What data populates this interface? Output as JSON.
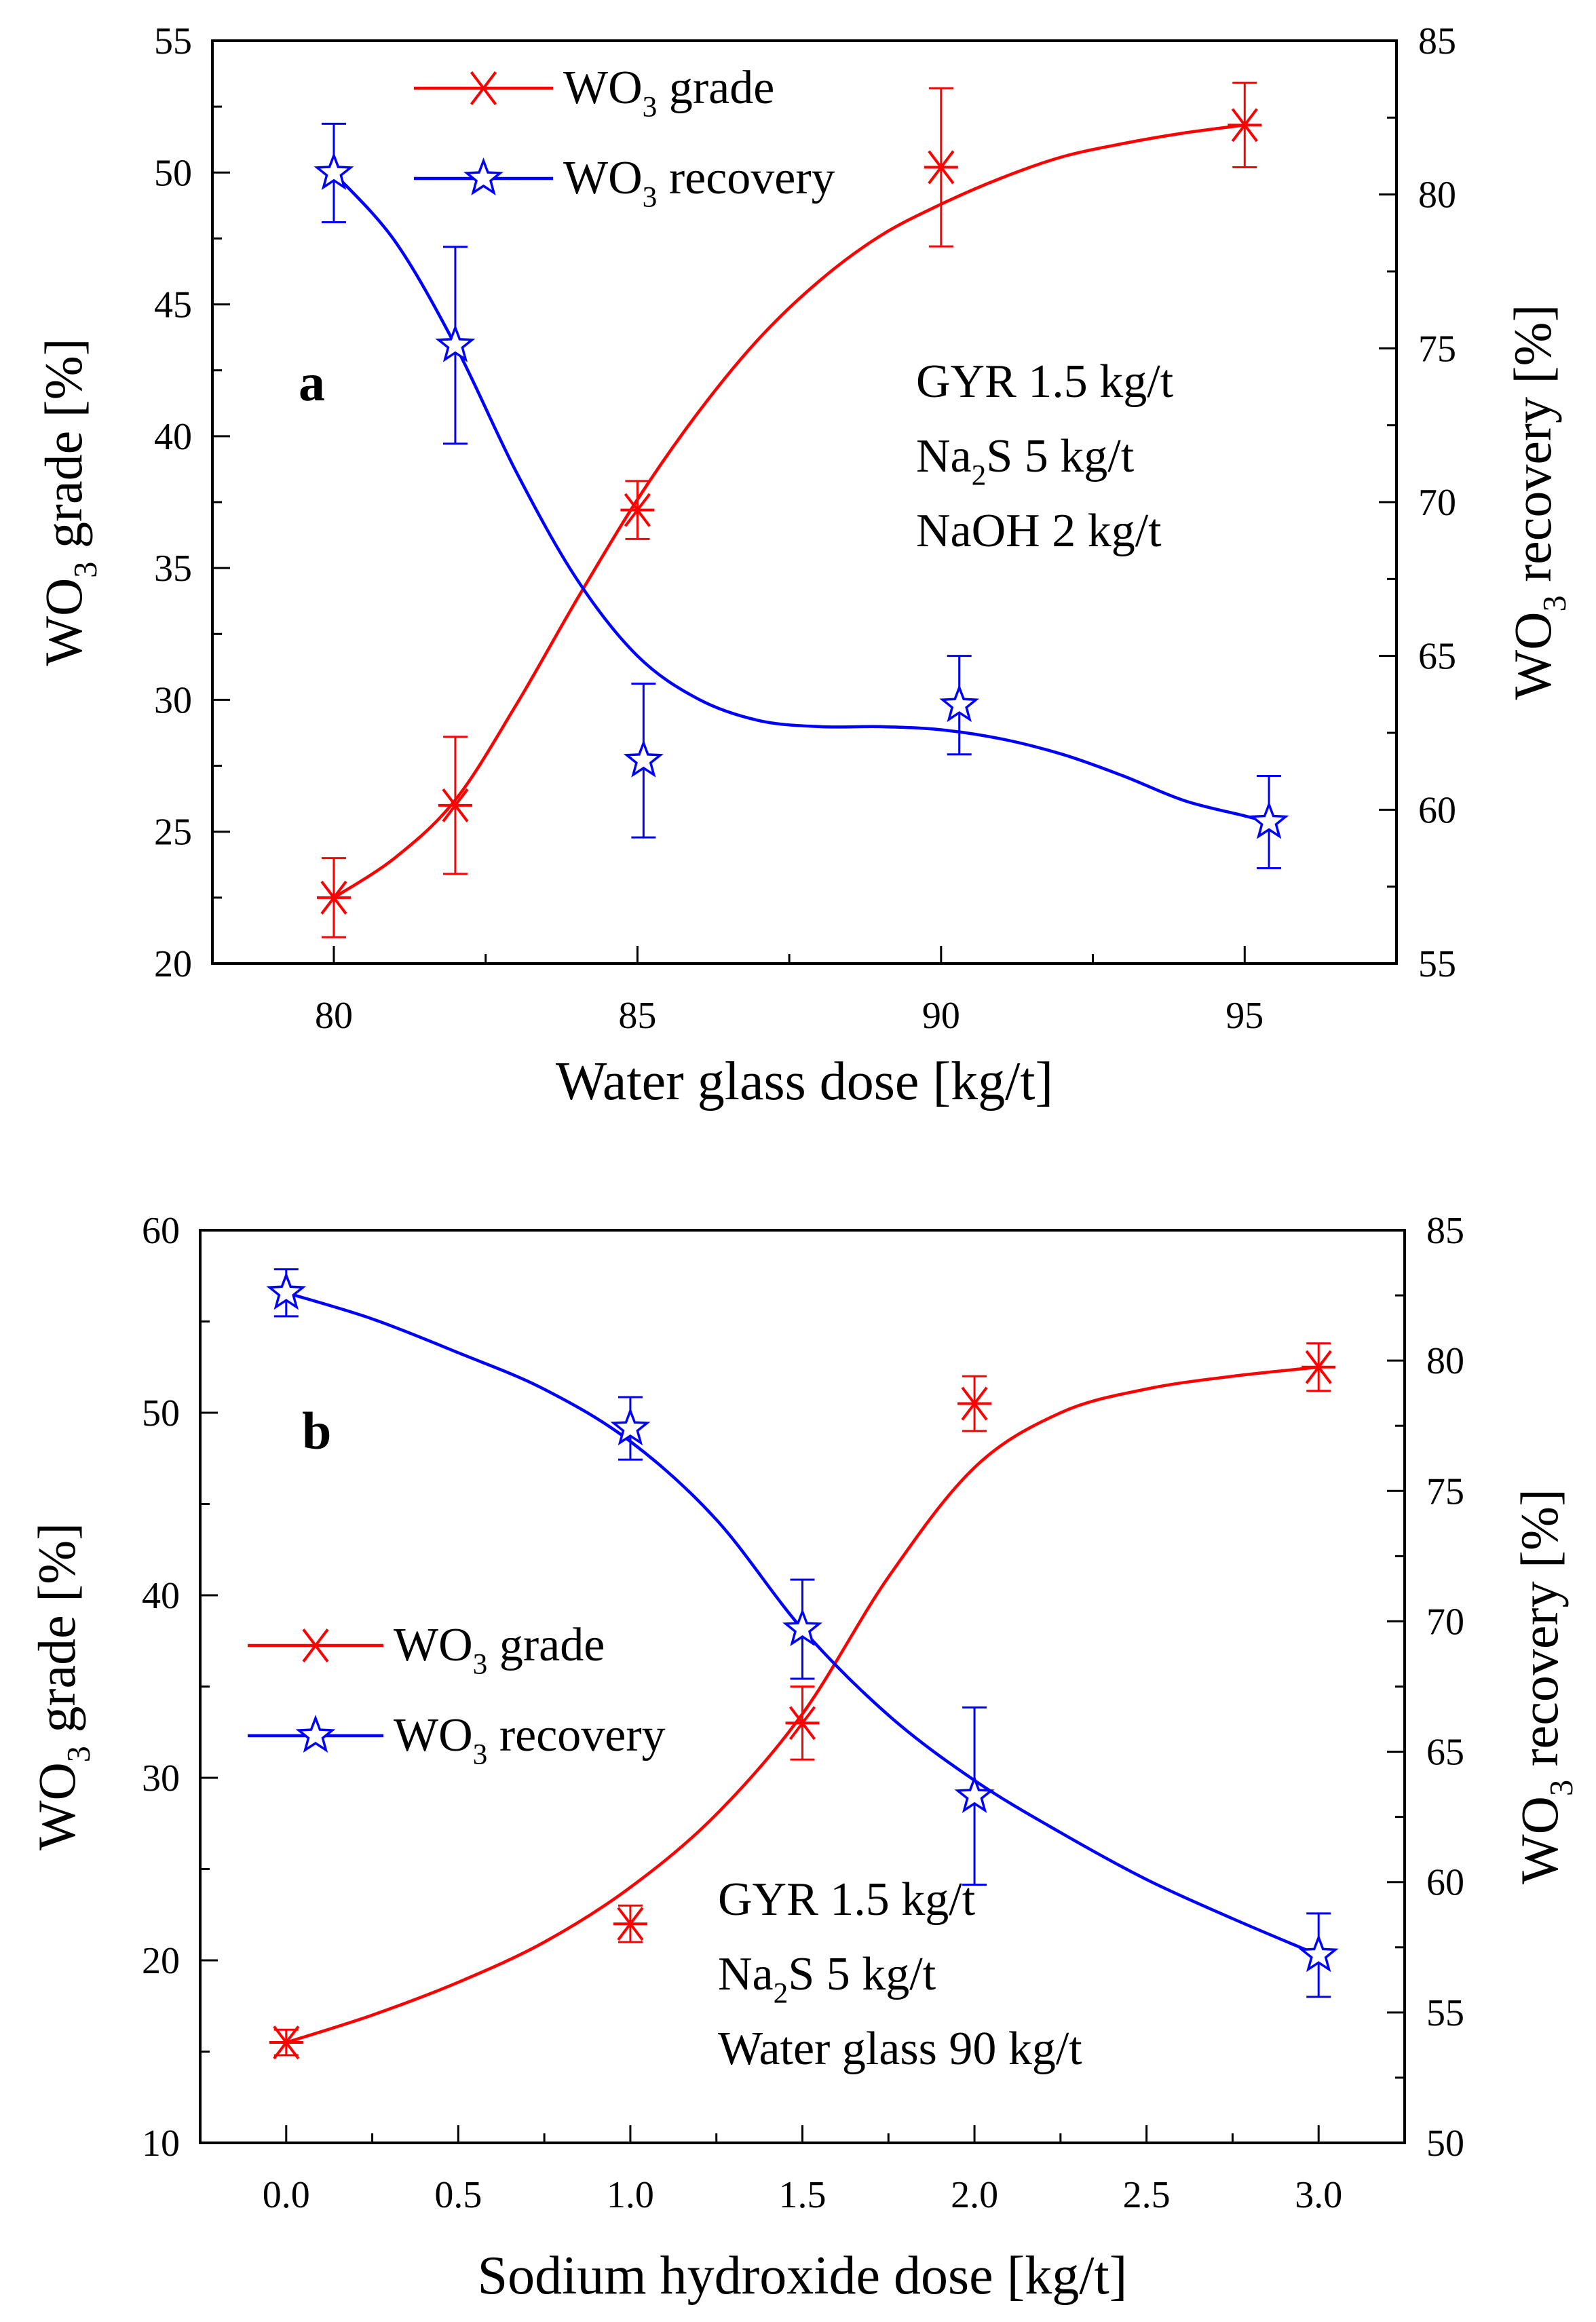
{
  "chart_data": [
    {
      "type": "line",
      "panel_label": "a",
      "xlabel": "Water glass dose [kg/t]",
      "ylabel": {
        "pre": "WO",
        "sub": "3",
        "post": " grade [%]"
      },
      "y2label": {
        "pre": "WO",
        "sub": "3",
        "post": " recovery [%]"
      },
      "xlim": [
        78,
        97.5
      ],
      "ylim": [
        20,
        55
      ],
      "y2lim": [
        55,
        85
      ],
      "xticks": [
        80,
        85,
        90,
        95
      ],
      "xtick_labels": [
        "80",
        "85",
        "90",
        "95"
      ],
      "yticks": [
        20,
        25,
        30,
        35,
        40,
        45,
        50,
        55
      ],
      "ytick_labels": [
        "20",
        "25",
        "30",
        "35",
        "40",
        "45",
        "50",
        "55"
      ],
      "y2ticks": [
        55,
        60,
        65,
        70,
        75,
        80,
        85
      ],
      "y2tick_labels": [
        "55",
        "60",
        "65",
        "70",
        "75",
        "80",
        "85"
      ],
      "series": [
        {
          "name": {
            "pre": "WO",
            "sub": "3",
            "post": " grade"
          },
          "axis": "left",
          "color": "#ff0000",
          "marker": "asterisk",
          "x": [
            80,
            82,
            85,
            90,
            95
          ],
          "y": [
            22.5,
            26.0,
            37.2,
            50.2,
            51.8
          ],
          "err": [
            1.5,
            2.6,
            1.1,
            3.0,
            1.6
          ],
          "fit_x": [
            80,
            81,
            82,
            83,
            84,
            85,
            86,
            87,
            88,
            89,
            90,
            91,
            92,
            93,
            94,
            95
          ],
          "fit_y": [
            22.5,
            24.0,
            26.2,
            29.8,
            33.8,
            37.6,
            40.9,
            43.7,
            45.9,
            47.6,
            48.8,
            49.8,
            50.6,
            51.1,
            51.5,
            51.8
          ]
        },
        {
          "name": {
            "pre": "WO",
            "sub": "3",
            "post": " recovery"
          },
          "axis": "right",
          "color": "#0000ff",
          "marker": "star",
          "x": [
            80,
            82,
            85.1,
            90.3,
            95.4
          ],
          "y": [
            80.7,
            75.1,
            61.6,
            63.4,
            59.6
          ],
          "err": [
            1.6,
            3.2,
            2.5,
            1.6,
            1.5
          ],
          "fit_x": [
            80,
            81,
            82,
            83,
            84,
            85,
            86,
            87,
            88,
            89,
            90,
            91,
            92,
            93,
            94,
            95,
            95.4
          ],
          "fit_y": [
            80.7,
            78.5,
            75.1,
            71.0,
            67.5,
            65.0,
            63.6,
            62.9,
            62.7,
            62.7,
            62.6,
            62.3,
            61.8,
            61.1,
            60.3,
            59.8,
            59.6
          ]
        }
      ],
      "annotations": [
        {
          "pre": "GYR 1.5 kg/t"
        },
        {
          "pre": "Na",
          "sub": "2",
          "post": "S 5 kg/t"
        },
        {
          "pre": "NaOH 2 kg/t"
        }
      ],
      "legend_position": "top-center",
      "grid": false
    },
    {
      "type": "line",
      "panel_label": "b",
      "xlabel": "Sodium hydroxide dose [kg/t]",
      "ylabel": {
        "pre": "WO",
        "sub": "3",
        "post": " grade [%]"
      },
      "y2label": {
        "pre": "WO",
        "sub": "3",
        "post": " recovery [%]"
      },
      "xlim": [
        -0.25,
        3.25
      ],
      "ylim": [
        10,
        60
      ],
      "y2lim": [
        50,
        85
      ],
      "xticks": [
        0,
        0.5,
        1,
        1.5,
        2,
        2.5,
        3
      ],
      "xtick_labels": [
        "0.0",
        "0.5",
        "1.0",
        "1.5",
        "2.0",
        "2.5",
        "3.0"
      ],
      "yticks": [
        10,
        20,
        30,
        40,
        50,
        60
      ],
      "ytick_labels": [
        "10",
        "20",
        "30",
        "40",
        "50",
        "60"
      ],
      "y2ticks": [
        50,
        55,
        60,
        65,
        70,
        75,
        80,
        85
      ],
      "y2tick_labels": [
        "50",
        "55",
        "60",
        "65",
        "70",
        "75",
        "80",
        "85"
      ],
      "series": [
        {
          "name": {
            "pre": "WO",
            "sub": "3",
            "post": " grade"
          },
          "axis": "left",
          "color": "#ff0000",
          "marker": "asterisk",
          "x": [
            0,
            1,
            1.5,
            2,
            3
          ],
          "y": [
            15.5,
            22.0,
            33.0,
            50.5,
            52.5
          ],
          "err": [
            0.7,
            1.0,
            2.0,
            1.5,
            1.3
          ],
          "fit_x": [
            0,
            0.25,
            0.5,
            0.75,
            1,
            1.25,
            1.5,
            1.75,
            2,
            2.25,
            2.5,
            2.75,
            3
          ],
          "fit_y": [
            15.5,
            17.0,
            18.8,
            21.0,
            24.0,
            28.0,
            33.5,
            41.0,
            47.0,
            50.0,
            51.3,
            52.0,
            52.5
          ]
        },
        {
          "name": {
            "pre": "WO",
            "sub": "3",
            "post": " recovery"
          },
          "axis": "right",
          "color": "#0000ff",
          "marker": "star",
          "x": [
            0,
            1,
            1.5,
            2,
            3
          ],
          "y": [
            82.6,
            77.4,
            69.7,
            63.3,
            57.2
          ],
          "err": [
            0.9,
            1.2,
            1.9,
            3.4,
            1.6
          ],
          "fit_x": [
            0,
            0.25,
            0.5,
            0.75,
            1,
            1.25,
            1.5,
            1.75,
            2,
            2.25,
            2.5,
            2.75,
            3
          ],
          "fit_y": [
            82.6,
            81.6,
            80.3,
            78.9,
            76.9,
            73.9,
            69.7,
            66.4,
            63.9,
            61.9,
            60.1,
            58.6,
            57.2
          ]
        }
      ],
      "annotations": [
        {
          "pre": "GYR 1.5 kg/t"
        },
        {
          "pre": "Na",
          "sub": "2",
          "post": "S 5 kg/t"
        },
        {
          "pre": "Water glass 90 kg/t"
        }
      ],
      "legend_position": "center-left",
      "grid": false
    }
  ]
}
